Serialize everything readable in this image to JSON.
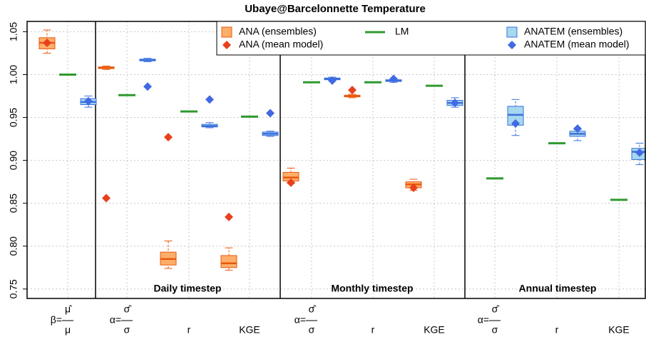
{
  "chart_data": {
    "type": "box",
    "title": "Ubaye@Barcelonnette Temperature",
    "categories": [
      {
        "prefix": "β=",
        "num": "μ̂",
        "den": "μ"
      },
      {
        "prefix": "α=",
        "num": "σ̂",
        "den": "σ"
      },
      "r",
      "KGE",
      {
        "prefix": "α=",
        "num": "σ̂",
        "den": "σ"
      },
      "r",
      "KGE",
      {
        "prefix": "α=",
        "num": "σ̂",
        "den": "σ"
      },
      "r",
      "KGE"
    ],
    "panels": [
      "Daily timestep",
      "Monthly timestep",
      "Annual timestep"
    ],
    "ylim": [
      0.739,
      1.062
    ],
    "yticks": [
      0.75,
      {
        "value": 0.8,
        "label": "0.80"
      },
      0.85,
      {
        "value": 0.9,
        "label": "0.90"
      },
      0.95,
      {
        "value": 1.0,
        "label": "1.00"
      },
      1.05
    ],
    "grid": true,
    "series": [
      {
        "name": "ANA (ensembles)",
        "marker": "box",
        "color": "#e8590c",
        "fill": "#fdae6b",
        "values": [
          [
            1.025,
            1.03,
            1.037,
            1.043,
            1.052
          ],
          [
            1.006,
            1.007,
            1.008,
            1.009,
            1.01
          ],
          [
            0.774,
            0.778,
            0.785,
            0.793,
            0.806
          ],
          [
            0.772,
            0.775,
            0.78,
            0.789,
            0.798
          ],
          [
            0.873,
            0.876,
            0.88,
            0.886,
            0.891
          ],
          [
            0.973,
            0.974,
            0.975,
            0.976,
            0.977
          ],
          [
            0.865,
            0.868,
            0.872,
            0.875,
            0.878
          ],
          null,
          null,
          null
        ]
      },
      {
        "name": "ANA (mean model)",
        "marker": "diamond",
        "color": "#e8401c",
        "values": [
          1.037,
          0.856,
          0.927,
          0.834,
          0.874,
          0.982,
          0.868,
          null,
          null,
          null
        ]
      },
      {
        "name": "LM",
        "marker": "dash",
        "color": "#2e9a2e",
        "values": [
          1.0,
          0.976,
          0.957,
          0.951,
          0.991,
          0.991,
          0.987,
          0.879,
          0.92,
          0.854
        ]
      },
      {
        "name": "ANATEM (ensembles)",
        "marker": "box",
        "color": "#3a6fdc",
        "fill": "#a6d8ee",
        "values": [
          [
            0.962,
            0.965,
            0.968,
            0.972,
            0.975
          ],
          [
            1.015,
            1.016,
            1.017,
            1.018,
            1.019
          ],
          [
            0.938,
            0.939,
            0.94,
            0.942,
            0.944
          ],
          [
            0.928,
            0.929,
            0.931,
            0.933,
            0.934
          ],
          [
            0.993,
            0.994,
            0.995,
            0.996,
            0.997
          ],
          [
            0.991,
            0.992,
            0.993,
            0.994,
            0.995
          ],
          [
            0.962,
            0.964,
            0.967,
            0.97,
            0.973
          ],
          [
            0.929,
            0.941,
            0.953,
            0.963,
            0.971
          ],
          [
            0.923,
            0.928,
            0.931,
            0.934,
            0.936
          ],
          [
            0.895,
            0.901,
            0.91,
            0.914,
            0.92
          ]
        ]
      },
      {
        "name": "ANATEM (mean model)",
        "marker": "diamond",
        "color": "#4169e1",
        "values": [
          0.969,
          0.986,
          0.971,
          0.955,
          0.993,
          0.995,
          0.967,
          0.943,
          0.937,
          0.909
        ]
      }
    ]
  }
}
